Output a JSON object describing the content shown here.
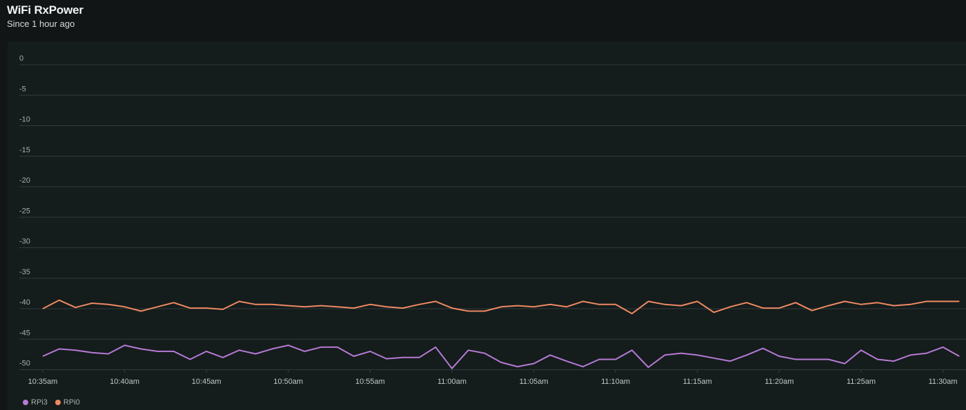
{
  "header": {
    "title": "WiFi RxPower",
    "subtitle": "Since 1 hour ago"
  },
  "chart_data": {
    "type": "line",
    "title": "WiFi RxPower",
    "subtitle": "Since 1 hour ago",
    "ylim": [
      -50,
      0
    ],
    "yticks": [
      "0",
      "-5",
      "-10",
      "-15",
      "-20",
      "-25",
      "-30",
      "-35",
      "-40",
      "-45",
      "-50"
    ],
    "xlim": [
      "10:35am",
      "11:31am"
    ],
    "xticks": [
      "10:35am",
      "10:40am",
      "10:45am",
      "10:50am",
      "10:55am",
      "11:00am",
      "11:05am",
      "11:10am",
      "11:15am",
      "11:20am",
      "11:25am",
      "11:30am"
    ],
    "grid": true,
    "legend_position": "bottom-left",
    "x_unit": "minutes after 10:35am",
    "series": [
      {
        "name": "RPi3",
        "color": "#b57bd6",
        "x": [
          0,
          1,
          2,
          3,
          4,
          5,
          6,
          7,
          8,
          9,
          10,
          11,
          12,
          13,
          14,
          15,
          16,
          17,
          18,
          19,
          20,
          21,
          22,
          23,
          24,
          25,
          26,
          27,
          28,
          29,
          30,
          31,
          32,
          33,
          34,
          35,
          36,
          37,
          38,
          39,
          40,
          41,
          42,
          43,
          44,
          45,
          46,
          47,
          48,
          49,
          50,
          51,
          52,
          53,
          54,
          55,
          56
        ],
        "values": [
          -47.8,
          -46.6,
          -46.8,
          -47.2,
          -47.4,
          -46.0,
          -46.6,
          -47.0,
          -47.0,
          -48.3,
          -47.0,
          -48.0,
          -46.8,
          -47.4,
          -46.6,
          -46.0,
          -47.0,
          -46.3,
          -46.3,
          -47.8,
          -47.0,
          -48.2,
          -48.0,
          -48.0,
          -46.3,
          -49.8,
          -46.8,
          -47.3,
          -48.8,
          -49.5,
          -49.0,
          -47.6,
          -48.6,
          -49.5,
          -48.3,
          -48.3,
          -46.8,
          -49.6,
          -47.6,
          -47.3,
          -47.6,
          -48.1,
          -48.6,
          -47.6,
          -46.5,
          -47.8,
          -48.3,
          -48.3,
          -48.3,
          -49.0,
          -46.8,
          -48.3,
          -48.6,
          -47.6,
          -47.3,
          -46.3,
          -47.8
        ]
      },
      {
        "name": "RPi0",
        "color": "#ef8a62",
        "x": [
          0,
          1,
          2,
          3,
          4,
          5,
          6,
          7,
          8,
          9,
          10,
          11,
          12,
          13,
          14,
          15,
          16,
          17,
          18,
          19,
          20,
          21,
          22,
          23,
          24,
          25,
          26,
          27,
          28,
          29,
          30,
          31,
          32,
          33,
          34,
          35,
          36,
          37,
          38,
          39,
          40,
          41,
          42,
          43,
          44,
          45,
          46,
          47,
          48,
          49,
          50,
          51,
          52,
          53,
          54,
          55,
          56
        ],
        "values": [
          -40.0,
          -38.6,
          -39.8,
          -39.1,
          -39.3,
          -39.7,
          -40.4,
          -39.7,
          -39.0,
          -39.9,
          -39.9,
          -40.1,
          -38.8,
          -39.3,
          -39.3,
          -39.5,
          -39.7,
          -39.5,
          -39.7,
          -39.9,
          -39.3,
          -39.7,
          -39.9,
          -39.3,
          -38.8,
          -39.9,
          -40.4,
          -40.4,
          -39.7,
          -39.5,
          -39.7,
          -39.3,
          -39.7,
          -38.8,
          -39.3,
          -39.3,
          -40.8,
          -38.8,
          -39.3,
          -39.5,
          -38.8,
          -40.6,
          -39.7,
          -39.0,
          -39.9,
          -39.9,
          -39.0,
          -40.3,
          -39.5,
          -38.8,
          -39.3,
          -39.0,
          -39.5,
          -39.3,
          -38.8,
          -38.8,
          -38.8
        ]
      }
    ]
  }
}
